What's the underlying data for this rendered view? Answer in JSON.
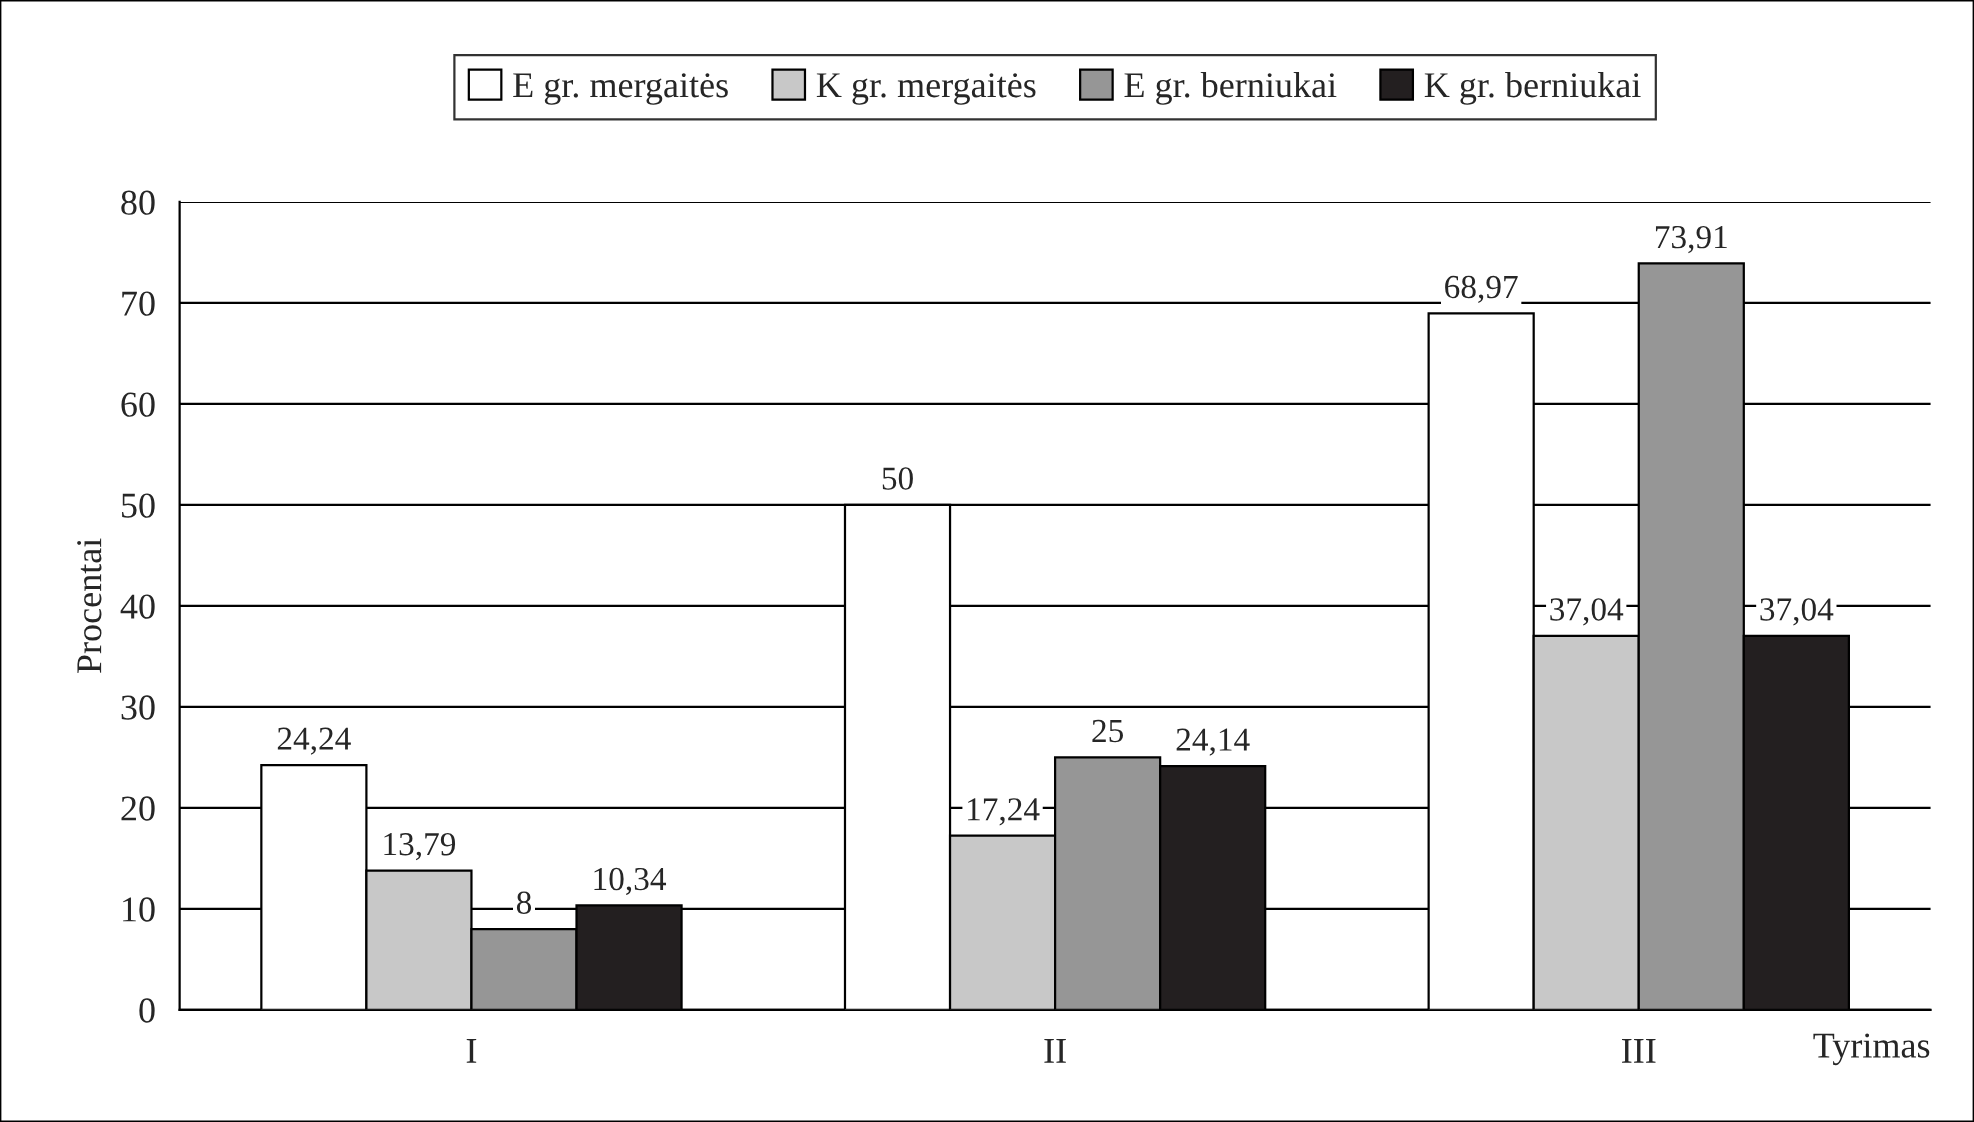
{
  "chart_data": {
    "type": "bar",
    "xlabel": "Tyrimas",
    "ylabel": "Procentai",
    "categories": [
      "I",
      "II",
      "III"
    ],
    "series": [
      {
        "name": "E gr. mergaitės",
        "color": "#ffffff",
        "values": [
          24.24,
          50,
          68.97
        ],
        "value_labels": [
          "24,24",
          "50",
          "68,97"
        ]
      },
      {
        "name": "K gr. mergaitės",
        "color": "#c8c8c8",
        "values": [
          13.79,
          17.24,
          37.04
        ],
        "value_labels": [
          "13,79",
          "17,24",
          "37,04"
        ]
      },
      {
        "name": "E gr. berniukai",
        "color": "#969696",
        "values": [
          8,
          25,
          73.91
        ],
        "value_labels": [
          "8",
          "25",
          "73,91"
        ]
      },
      {
        "name": "K gr. berniukai",
        "color": "#231f20",
        "values": [
          10.34,
          24.14,
          37.04
        ],
        "value_labels": [
          "10,34",
          "24,14",
          "37,04"
        ]
      }
    ],
    "ylim": [
      0,
      80
    ],
    "yticks": [
      0,
      10,
      20,
      30,
      40,
      50,
      60,
      70,
      80
    ],
    "grid": "y",
    "legend": "top"
  }
}
